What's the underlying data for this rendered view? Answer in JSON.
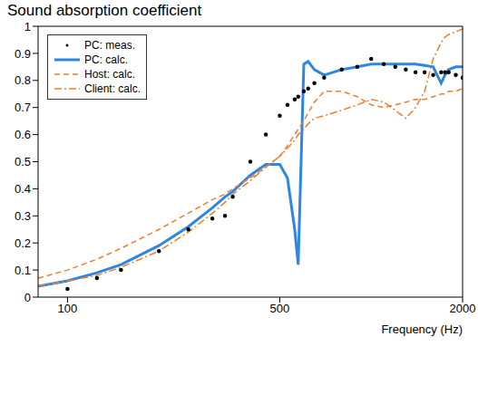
{
  "chart_data": {
    "type": "line",
    "title": "Sound absorption coefficient",
    "x_label": "Frequency (Hz)",
    "log": "x",
    "grid": false,
    "legend": "upper left",
    "xlim": [
      80,
      2000
    ],
    "xticks": [
      100,
      500,
      2000
    ],
    "ylim": [
      0,
      1
    ],
    "yticks": [
      0,
      0.1,
      0.2,
      0.3,
      0.4,
      0.5,
      0.6,
      0.7,
      0.8,
      0.9,
      1
    ],
    "x": [
      80,
      100,
      125,
      150,
      200,
      250,
      300,
      330,
      350,
      400,
      450,
      500,
      530,
      560,
      575,
      600,
      620,
      650,
      700,
      800,
      900,
      1000,
      1100,
      1200,
      1300,
      1400,
      1500,
      1600,
      1700,
      1750,
      1800,
      1900,
      2000
    ],
    "series": [
      {
        "name": "PC: meas.",
        "color": "#000000",
        "marker": "dot",
        "line_style": "none",
        "values": [
          null,
          0.03,
          0.07,
          0.1,
          0.17,
          0.25,
          0.29,
          0.3,
          0.37,
          0.5,
          0.6,
          0.67,
          0.71,
          0.73,
          0.74,
          0.76,
          0.77,
          0.79,
          0.81,
          0.84,
          0.85,
          0.88,
          0.86,
          0.85,
          0.84,
          0.83,
          0.83,
          0.82,
          0.83,
          0.83,
          0.83,
          0.82,
          0.81
        ]
      },
      {
        "name": "PC: calc.",
        "color": "#2f86e0",
        "line_style": "solid",
        "values": [
          0.04,
          0.06,
          0.09,
          0.12,
          0.19,
          0.26,
          0.33,
          0.37,
          0.39,
          0.45,
          0.49,
          0.49,
          0.44,
          0.25,
          0.12,
          0.86,
          0.87,
          0.84,
          0.82,
          0.84,
          0.85,
          0.86,
          0.86,
          0.86,
          0.86,
          0.86,
          0.855,
          0.85,
          0.79,
          0.82,
          0.84,
          0.85,
          0.85
        ]
      },
      {
        "name": "Host: calc.",
        "color": "#f07d2a",
        "line_style": "dashed",
        "values": [
          0.07,
          0.1,
          0.14,
          0.18,
          0.25,
          0.31,
          0.36,
          0.38,
          0.4,
          0.44,
          0.48,
          0.52,
          0.56,
          0.6,
          0.62,
          0.65,
          0.68,
          0.72,
          0.76,
          0.76,
          0.74,
          0.71,
          0.7,
          0.71,
          0.72,
          0.73,
          0.73,
          0.74,
          0.75,
          0.75,
          0.76,
          0.76,
          0.77
        ]
      },
      {
        "name": "Client: calc.",
        "color": "#f07d2a",
        "line_style": "dashdot",
        "values": [
          0.04,
          0.06,
          0.08,
          0.11,
          0.17,
          0.24,
          0.31,
          0.35,
          0.38,
          0.43,
          0.48,
          0.52,
          0.55,
          0.58,
          0.6,
          0.62,
          0.64,
          0.66,
          0.67,
          0.69,
          0.71,
          0.73,
          0.72,
          0.69,
          0.66,
          0.7,
          0.76,
          0.88,
          0.94,
          0.96,
          0.97,
          0.98,
          0.99
        ]
      }
    ]
  }
}
